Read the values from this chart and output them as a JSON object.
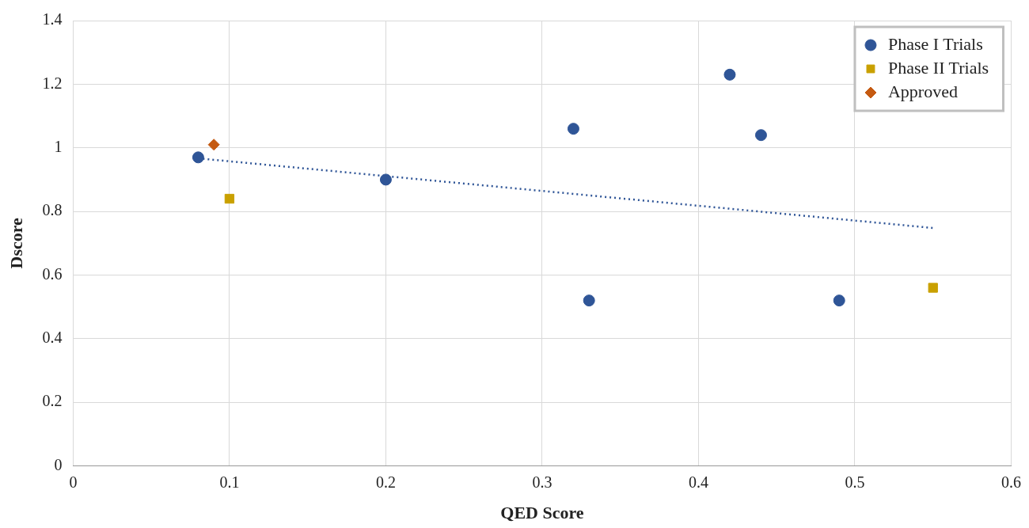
{
  "chart_data": {
    "type": "scatter",
    "xlabel": "QED Score",
    "ylabel": "Dscore",
    "xlim": [
      0,
      0.6
    ],
    "xticks": [
      0,
      0.1,
      0.2,
      0.3,
      0.4,
      0.5,
      0.6
    ],
    "ylim": [
      0,
      1.4
    ],
    "yticks": [
      0,
      0.2,
      0.4,
      0.6,
      0.8,
      1,
      1.2,
      1.4
    ],
    "grid": true,
    "legend": "top right",
    "series": [
      {
        "name": "Phase I Trials",
        "color": "#2f5597",
        "marker": "circle",
        "x": [
          0.08,
          0.2,
          0.32,
          0.33,
          0.42,
          0.44,
          0.49
        ],
        "values": [
          0.97,
          0.9,
          1.06,
          0.52,
          1.23,
          1.04,
          0.52
        ]
      },
      {
        "name": "Phase II Trials",
        "color": "#c9a000",
        "marker": "square",
        "x": [
          0.1,
          0.55
        ],
        "values": [
          0.84,
          0.56
        ]
      },
      {
        "name": "Approved",
        "color": "#c55a11",
        "marker": "diamond",
        "x": [
          0.09
        ],
        "values": [
          1.01
        ]
      },
      {
        "type": "line",
        "color": "#2f5597",
        "line_style": "dotted",
        "marker": "none",
        "x": [
          0.08,
          0.55
        ],
        "values": [
          0.967,
          0.748
        ]
      }
    ]
  }
}
